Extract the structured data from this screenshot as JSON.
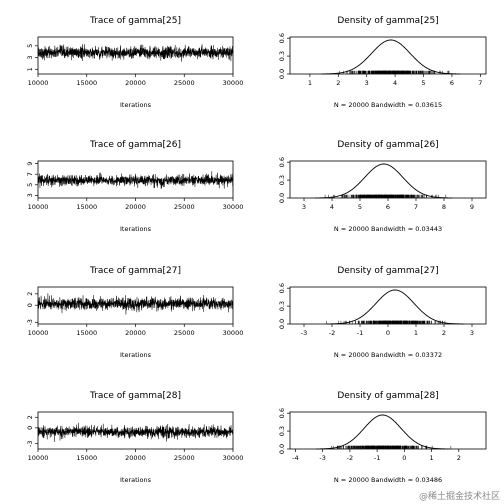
{
  "chart_data": [
    {
      "type": "line",
      "title": "Trace of gamma[25]",
      "xlabel": "Iterations",
      "ylabel": "",
      "xlim": [
        10000,
        30000
      ],
      "ylim": [
        0.2,
        6.5
      ],
      "x_ticks": [
        10000,
        15000,
        20000,
        25000,
        30000
      ],
      "x_tick_labels": [
        "10000",
        "15000",
        "20000",
        "25000",
        "30000"
      ],
      "y_ticks": [
        1,
        3,
        5
      ],
      "y_tick_labels": [
        "1",
        "3",
        "5"
      ],
      "trace": {
        "mean": 3.85,
        "spread": 0.95,
        "n_iterations": 20000
      }
    },
    {
      "type": "area",
      "title": "Density of gamma[25]",
      "sub": "N = 20000   Bandwidth = 0.03615",
      "xlim": [
        0.3,
        7.2
      ],
      "ylim": [
        0,
        0.62
      ],
      "x_ticks": [
        1,
        2,
        3,
        4,
        5,
        6,
        7
      ],
      "x_tick_labels": [
        "1",
        "2",
        "3",
        "4",
        "5",
        "6",
        "7"
      ],
      "y_ticks": [
        0.0,
        0.3,
        0.6
      ],
      "y_tick_labels": [
        "0.0",
        "0.3",
        "0.6"
      ],
      "density": {
        "mean": 3.85,
        "sd": 0.68,
        "peak": 0.57
      }
    },
    {
      "type": "line",
      "title": "Trace of gamma[26]",
      "xlabel": "Iterations",
      "ylabel": "",
      "xlim": [
        10000,
        30000
      ],
      "ylim": [
        2.5,
        9.5
      ],
      "x_ticks": [
        10000,
        15000,
        20000,
        25000,
        30000
      ],
      "x_tick_labels": [
        "10000",
        "15000",
        "20000",
        "25000",
        "30000"
      ],
      "y_ticks": [
        3,
        5,
        7,
        9
      ],
      "y_tick_labels": [
        "3",
        "5",
        "7",
        "9"
      ],
      "trace": {
        "mean": 5.85,
        "spread": 0.95,
        "n_iterations": 20000
      }
    },
    {
      "type": "area",
      "title": "Density of gamma[26]",
      "sub": "N = 20000   Bandwidth = 0.03443",
      "xlim": [
        2.5,
        9.5
      ],
      "ylim": [
        0,
        0.62
      ],
      "x_ticks": [
        3,
        4,
        5,
        6,
        7,
        8,
        9
      ],
      "x_tick_labels": [
        "3",
        "4",
        "5",
        "6",
        "7",
        "8",
        "9"
      ],
      "y_ticks": [
        0.0,
        0.3,
        0.6
      ],
      "y_tick_labels": [
        "0.0",
        "0.3",
        "0.6"
      ],
      "density": {
        "mean": 5.85,
        "sd": 0.68,
        "peak": 0.57
      }
    },
    {
      "type": "line",
      "title": "Trace of gamma[27]",
      "xlabel": "Iterations",
      "ylabel": "",
      "xlim": [
        10000,
        30000
      ],
      "ylim": [
        -3.3,
        3.2
      ],
      "x_ticks": [
        10000,
        15000,
        20000,
        25000,
        30000
      ],
      "x_tick_labels": [
        "10000",
        "15000",
        "20000",
        "25000",
        "30000"
      ],
      "y_ticks": [
        -3,
        0,
        2
      ],
      "y_tick_labels": [
        "-3",
        "0",
        "2"
      ],
      "trace": {
        "mean": 0.25,
        "spread": 0.95,
        "n_iterations": 20000
      }
    },
    {
      "type": "area",
      "title": "Density of gamma[27]",
      "sub": "N = 20000   Bandwidth = 0.03372",
      "xlim": [
        -3.5,
        3.5
      ],
      "ylim": [
        0,
        0.62
      ],
      "x_ticks": [
        -3,
        -2,
        -1,
        0,
        1,
        2,
        3
      ],
      "x_tick_labels": [
        "-3",
        "-2",
        "-1",
        "0",
        "1",
        "2",
        "3"
      ],
      "y_ticks": [
        0.0,
        0.3,
        0.6
      ],
      "y_tick_labels": [
        "0.0",
        "0.3",
        "0.6"
      ],
      "density": {
        "mean": 0.25,
        "sd": 0.68,
        "peak": 0.57
      }
    },
    {
      "type": "line",
      "title": "Trace of gamma[28]",
      "xlabel": "Iterations",
      "ylabel": "",
      "xlim": [
        10000,
        30000
      ],
      "ylim": [
        -4.0,
        3.0
      ],
      "x_ticks": [
        10000,
        15000,
        20000,
        25000,
        30000
      ],
      "x_tick_labels": [
        "10000",
        "15000",
        "20000",
        "25000",
        "30000"
      ],
      "y_ticks": [
        -3,
        0,
        2
      ],
      "y_tick_labels": [
        "-3",
        "0",
        "2"
      ],
      "trace": {
        "mean": -0.8,
        "spread": 0.95,
        "n_iterations": 20000
      }
    },
    {
      "type": "area",
      "title": "Density of gamma[28]",
      "sub": "N = 20000   Bandwidth = 0.03486",
      "xlim": [
        -4.2,
        3.0
      ],
      "ylim": [
        0,
        0.62
      ],
      "x_ticks": [
        -4,
        -3,
        -2,
        -1,
        0,
        1,
        2
      ],
      "x_tick_labels": [
        "-4",
        "-3",
        "-2",
        "-1",
        "0",
        "1",
        "2"
      ],
      "y_ticks": [
        0.0,
        0.3,
        0.6
      ],
      "y_tick_labels": [
        "0.0",
        "0.3",
        "0.6"
      ],
      "density": {
        "mean": -0.8,
        "sd": 0.68,
        "peak": 0.57
      }
    }
  ],
  "watermark": "@稀土掘金技术社区",
  "colors": {
    "line": "#000000",
    "background": "#ffffff"
  }
}
